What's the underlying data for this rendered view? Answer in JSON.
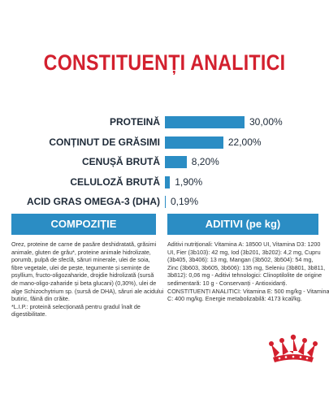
{
  "title": "CONSTITUENȚI ANALITICI",
  "chart_data": {
    "type": "bar",
    "categories": [
      "PROTEINĂ",
      "CONȚINUT DE GRĂSIMI",
      "CENUȘĂ BRUTĂ",
      "CELULOZĂ BRUTĂ",
      "ACID GRAS OMEGA-3 (DHA)"
    ],
    "values": [
      30.0,
      22.0,
      8.2,
      1.9,
      0.19
    ],
    "value_labels": [
      "30,00%",
      "22,00%",
      "8,20%",
      "1,90%",
      "0,19%"
    ],
    "bar_color": "#2b8dc4"
  },
  "sections": {
    "compozitie": {
      "heading": "COMPOZIȚIE",
      "lines": [
        "Orez, proteine de carne de pasăre deshidratată, grăsimi",
        "animale, gluten de grâu*, proteine animale hidrolizate,",
        "porumb, pulpă de sfeclă, săruri minerale, ulei de soia,",
        "fibre vegetale, ulei de pește, tegumente și semințe de",
        "psyllium, fructo-oligozaharide, drojdie hidrolizată (sursă",
        "de mano-oligo-zaharide și beta glucani) (0,30%), ulei de",
        "alge Schizochytrium sp. (sursă de DHA), săruri ale acidului",
        "butiric, făină din crăite.",
        "*L.I.P.: proteină selecționată pentru gradul înalt de",
        "digestibilitate."
      ]
    },
    "aditivi": {
      "heading": "ADITIVI (pe kg)",
      "lines": [
        "Aditivi nutriționali: Vitamina A: 18500 UI, Vitamina D3: 1200",
        "UI, Fier (3b103): 42 mg, Iod (3b201, 3b202): 4,2 mg, Cupru",
        "(3b405, 3b406): 13 mg, Mangan (3b502, 3b504): 54 mg,",
        "Zinc (3b603, 3b605, 3b606): 135 mg, Seleniu (3b801, 3b811,",
        "3b812): 0,06 mg - Aditivi tehnologici: Clinoptilolite de origine",
        "sedimentară: 10 g - Conservanți - Antioxidanți.",
        "CONSTITUENȚI ANALITICI: Vitamina E: 500 mg/kg - Vitamina",
        "C: 400 mg/kg. Energie metabolizabilă: 4173 kcal/kg."
      ]
    }
  },
  "colors": {
    "brand_red": "#d3202e",
    "accent_blue": "#2b8dc4",
    "text_dark": "#1e2a38"
  },
  "logo": {
    "icon": "royal-canin-crown-icon"
  }
}
